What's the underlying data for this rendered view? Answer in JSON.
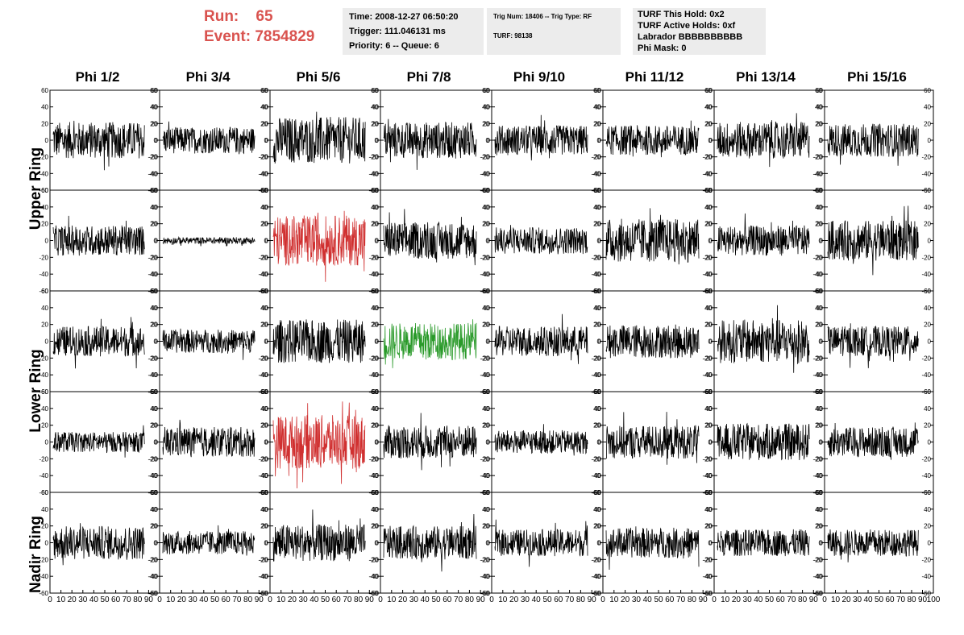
{
  "header": {
    "run_label": "Run:",
    "run_value": "65",
    "event_label": "Event:",
    "event_value": "7854829",
    "time": "Time: 2008-12-27 06:50:20",
    "trigger": "Trigger: 111.046131 ms",
    "priority": "Priority: 6 -- Queue: 6",
    "trig_num": "Trig Num: 18406 -- Trig Type: RF",
    "turf": "TURF: 98138",
    "turf_this_hold": "TURF This Hold: 0x2",
    "turf_active_holds": "TURF Active Holds: 0xf",
    "labrador": "Labrador BBBBBBBBBB",
    "phi_mask": "Phi Mask: 0"
  },
  "columns": [
    "Phi 1/2",
    "Phi 3/4",
    "Phi 5/6",
    "Phi 7/8",
    "Phi 9/10",
    "Phi 11/12",
    "Phi 13/14",
    "Phi 15/16"
  ],
  "ring_labels": [
    "Upper Ring",
    "Lower Ring",
    "Nadir Ring"
  ],
  "chart_data": {
    "type": "line",
    "description_rows": 5,
    "xlim": [
      0,
      100
    ],
    "ylim": [
      -60,
      60
    ],
    "y_ticks": [
      -60,
      -40,
      -20,
      0,
      20,
      40,
      60
    ],
    "x_ticks": [
      0,
      10,
      20,
      30,
      40,
      50,
      60,
      70,
      80,
      90,
      100
    ],
    "colors": {
      "normal": "#000000",
      "highlight_red": "#d03030",
      "highlight_green": "#2a9a2a"
    },
    "panels": [
      {
        "row": 0,
        "col": 0,
        "amp": 22,
        "color": "normal"
      },
      {
        "row": 0,
        "col": 1,
        "amp": 16,
        "color": "normal"
      },
      {
        "row": 0,
        "col": 2,
        "amp": 28,
        "color": "normal"
      },
      {
        "row": 0,
        "col": 3,
        "amp": 22,
        "color": "normal"
      },
      {
        "row": 0,
        "col": 4,
        "amp": 18,
        "color": "normal"
      },
      {
        "row": 0,
        "col": 5,
        "amp": 18,
        "color": "normal"
      },
      {
        "row": 0,
        "col": 6,
        "amp": 22,
        "color": "normal"
      },
      {
        "row": 0,
        "col": 7,
        "amp": 20,
        "color": "normal"
      },
      {
        "row": 1,
        "col": 0,
        "amp": 18,
        "color": "normal"
      },
      {
        "row": 1,
        "col": 1,
        "amp": 4,
        "color": "normal"
      },
      {
        "row": 1,
        "col": 2,
        "amp": 30,
        "color": "highlight_red"
      },
      {
        "row": 1,
        "col": 3,
        "amp": 22,
        "color": "normal"
      },
      {
        "row": 1,
        "col": 4,
        "amp": 16,
        "color": "normal"
      },
      {
        "row": 1,
        "col": 5,
        "amp": 26,
        "color": "normal"
      },
      {
        "row": 1,
        "col": 6,
        "amp": 18,
        "color": "normal"
      },
      {
        "row": 1,
        "col": 7,
        "amp": 24,
        "color": "normal"
      },
      {
        "row": 2,
        "col": 0,
        "amp": 18,
        "color": "normal"
      },
      {
        "row": 2,
        "col": 1,
        "amp": 14,
        "color": "normal"
      },
      {
        "row": 2,
        "col": 2,
        "amp": 26,
        "color": "normal"
      },
      {
        "row": 2,
        "col": 3,
        "amp": 22,
        "color": "highlight_green"
      },
      {
        "row": 2,
        "col": 4,
        "amp": 18,
        "color": "normal"
      },
      {
        "row": 2,
        "col": 5,
        "amp": 20,
        "color": "normal"
      },
      {
        "row": 2,
        "col": 6,
        "amp": 26,
        "color": "normal"
      },
      {
        "row": 2,
        "col": 7,
        "amp": 18,
        "color": "normal"
      },
      {
        "row": 3,
        "col": 0,
        "amp": 12,
        "color": "normal"
      },
      {
        "row": 3,
        "col": 1,
        "amp": 18,
        "color": "normal"
      },
      {
        "row": 3,
        "col": 2,
        "amp": 32,
        "color": "highlight_red"
      },
      {
        "row": 3,
        "col": 3,
        "amp": 20,
        "color": "normal"
      },
      {
        "row": 3,
        "col": 4,
        "amp": 14,
        "color": "normal"
      },
      {
        "row": 3,
        "col": 5,
        "amp": 20,
        "color": "normal"
      },
      {
        "row": 3,
        "col": 6,
        "amp": 22,
        "color": "normal"
      },
      {
        "row": 3,
        "col": 7,
        "amp": 18,
        "color": "normal"
      },
      {
        "row": 4,
        "col": 0,
        "amp": 20,
        "color": "normal"
      },
      {
        "row": 4,
        "col": 1,
        "amp": 14,
        "color": "normal"
      },
      {
        "row": 4,
        "col": 2,
        "amp": 22,
        "color": "normal"
      },
      {
        "row": 4,
        "col": 3,
        "amp": 20,
        "color": "normal"
      },
      {
        "row": 4,
        "col": 4,
        "amp": 16,
        "color": "normal"
      },
      {
        "row": 4,
        "col": 5,
        "amp": 18,
        "color": "normal"
      },
      {
        "row": 4,
        "col": 6,
        "amp": 16,
        "color": "normal"
      },
      {
        "row": 4,
        "col": 7,
        "amp": 16,
        "color": "normal"
      }
    ]
  }
}
